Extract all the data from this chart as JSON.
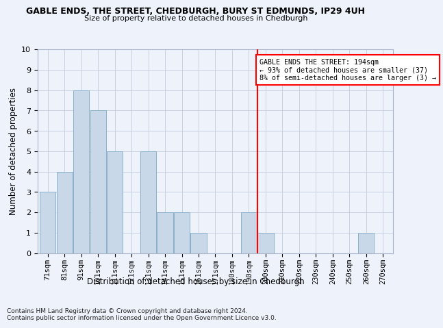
{
  "title": "GABLE ENDS, THE STREET, CHEDBURGH, BURY ST EDMUNDS, IP29 4UH",
  "subtitle": "Size of property relative to detached houses in Chedburgh",
  "xlabel": "Distribution of detached houses by size in Chedburgh",
  "ylabel": "Number of detached properties",
  "categories": [
    "71sqm",
    "81sqm",
    "91sqm",
    "101sqm",
    "111sqm",
    "121sqm",
    "131sqm",
    "141sqm",
    "151sqm",
    "161sqm",
    "171sqm",
    "180sqm",
    "190sqm",
    "200sqm",
    "210sqm",
    "220sqm",
    "230sqm",
    "240sqm",
    "250sqm",
    "260sqm",
    "270sqm"
  ],
  "values": [
    3,
    4,
    8,
    7,
    5,
    0,
    5,
    2,
    2,
    1,
    0,
    0,
    2,
    1,
    0,
    0,
    0,
    0,
    0,
    1,
    0
  ],
  "bar_color": "#c8d8e8",
  "bar_edge_color": "#8ab0cc",
  "ylim": [
    0,
    10
  ],
  "yticks": [
    0,
    1,
    2,
    3,
    4,
    5,
    6,
    7,
    8,
    9,
    10
  ],
  "vline_color": "red",
  "annotation_text": "GABLE ENDS THE STREET: 194sqm\n← 93% of detached houses are smaller (37)\n8% of semi-detached houses are larger (3) →",
  "annotation_box_color": "red",
  "footer": "Contains HM Land Registry data © Crown copyright and database right 2024.\nContains public sector information licensed under the Open Government Licence v3.0.",
  "background_color": "#eef2fb",
  "grid_color": "#c8d0e0"
}
